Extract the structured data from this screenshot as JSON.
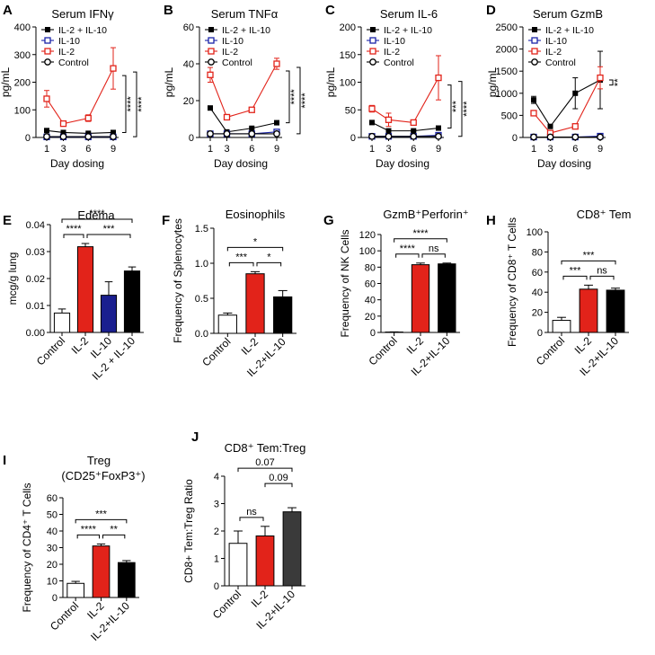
{
  "chart_data": [
    {
      "id": "A",
      "type": "line",
      "panel_label": "A",
      "title": "Serum IFNγ",
      "xlabel": "Day dosing",
      "ylabel": "pg/mL",
      "x": [
        1,
        3,
        6,
        9
      ],
      "xticks": [
        "1",
        "3",
        "6",
        "9"
      ],
      "ylim": [
        0,
        400
      ],
      "yticks": [
        0,
        100,
        200,
        300,
        400
      ],
      "legend": "top-left",
      "series": [
        {
          "name": "IL-2 + IL-10",
          "color": "#000000",
          "marker": "filled-square",
          "values": [
            25,
            18,
            15,
            18
          ],
          "err": [
            3,
            2,
            2,
            3
          ]
        },
        {
          "name": "IL-10",
          "color": "#1a23a8",
          "marker": "open-square",
          "values": [
            2,
            2,
            2,
            2
          ],
          "err": [
            0,
            0,
            0,
            0
          ]
        },
        {
          "name": "IL-2",
          "color": "#e2231a",
          "marker": "open-square",
          "values": [
            140,
            50,
            70,
            250
          ],
          "err": [
            30,
            6,
            12,
            75
          ]
        },
        {
          "name": "Control",
          "color": "#000000",
          "marker": "open-circle",
          "values": [
            3,
            3,
            3,
            3
          ],
          "err": [
            0,
            0,
            0,
            0
          ]
        }
      ],
      "annotations": [
        "****",
        "****"
      ]
    },
    {
      "id": "B",
      "type": "line",
      "panel_label": "B",
      "title": "Serum TNFα",
      "xlabel": "Day dosing",
      "ylabel": "pg/mL",
      "x": [
        1,
        3,
        6,
        9
      ],
      "xticks": [
        "1",
        "3",
        "6",
        "9"
      ],
      "ylim": [
        0,
        60
      ],
      "yticks": [
        0,
        20,
        40,
        60
      ],
      "legend": "top-left",
      "series": [
        {
          "name": "IL-2 + IL-10",
          "color": "#000000",
          "marker": "filled-square",
          "values": [
            16,
            3,
            5,
            8
          ],
          "err": [
            1,
            0.5,
            0.5,
            1
          ]
        },
        {
          "name": "IL-10",
          "color": "#1a23a8",
          "marker": "open-square",
          "values": [
            2,
            2,
            2,
            3
          ],
          "err": [
            0,
            0,
            0,
            0
          ]
        },
        {
          "name": "IL-2",
          "color": "#e2231a",
          "marker": "open-square",
          "values": [
            34,
            11,
            15,
            40
          ],
          "err": [
            4,
            1,
            1,
            3
          ]
        },
        {
          "name": "Control",
          "color": "#000000",
          "marker": "open-circle",
          "values": [
            2,
            2,
            2,
            2
          ],
          "err": [
            0,
            0,
            0,
            0
          ]
        }
      ],
      "annotations": [
        "****",
        "****"
      ]
    },
    {
      "id": "C",
      "type": "line",
      "panel_label": "C",
      "title": "Serum IL-6",
      "xlabel": "Day dosing",
      "ylabel": "pg/mL",
      "x": [
        1,
        3,
        6,
        9
      ],
      "xticks": [
        "1",
        "3",
        "6",
        "9"
      ],
      "ylim": [
        0,
        200
      ],
      "yticks": [
        0,
        50,
        100,
        150,
        200
      ],
      "legend": "top-left",
      "series": [
        {
          "name": "IL-2 + IL-10",
          "color": "#000000",
          "marker": "filled-square",
          "values": [
            27,
            12,
            12,
            17
          ],
          "err": [
            2,
            2,
            2,
            2
          ]
        },
        {
          "name": "IL-10",
          "color": "#1a23a8",
          "marker": "open-square",
          "values": [
            2,
            2,
            2,
            4
          ],
          "err": [
            0,
            0,
            0,
            0
          ]
        },
        {
          "name": "IL-2",
          "color": "#e2231a",
          "marker": "open-square",
          "values": [
            52,
            32,
            27,
            108
          ],
          "err": [
            6,
            12,
            3,
            40
          ]
        },
        {
          "name": "Control",
          "color": "#000000",
          "marker": "open-circle",
          "values": [
            2,
            2,
            2,
            2
          ],
          "err": [
            0,
            0,
            0,
            0
          ]
        }
      ],
      "annotations": [
        "***",
        "****"
      ]
    },
    {
      "id": "D",
      "type": "line",
      "panel_label": "D",
      "title": "Serum GzmB",
      "xlabel": "Day dosing",
      "ylabel": "pg/mL",
      "x": [
        1,
        3,
        6,
        9
      ],
      "xticks": [
        "1",
        "3",
        "6",
        "9"
      ],
      "ylim": [
        0,
        2500
      ],
      "yticks": [
        0,
        500,
        1000,
        1500,
        2000,
        2500
      ],
      "legend": "top-left",
      "series": [
        {
          "name": "IL-2 + IL-10",
          "color": "#000000",
          "marker": "filled-square",
          "values": [
            850,
            250,
            1000,
            1300
          ],
          "err": [
            80,
            30,
            350,
            650
          ]
        },
        {
          "name": "IL-10",
          "color": "#1a23a8",
          "marker": "open-square",
          "values": [
            10,
            10,
            10,
            30
          ],
          "err": [
            0,
            0,
            0,
            0
          ]
        },
        {
          "name": "IL-2",
          "color": "#e2231a",
          "marker": "open-square",
          "values": [
            550,
            100,
            250,
            1350
          ],
          "err": [
            40,
            20,
            30,
            250
          ]
        },
        {
          "name": "Control",
          "color": "#000000",
          "marker": "open-circle",
          "values": [
            10,
            10,
            10,
            10
          ],
          "err": [
            0,
            0,
            0,
            0
          ]
        }
      ],
      "annotations": [
        "**"
      ]
    },
    {
      "id": "E",
      "type": "bar",
      "panel_label": "E",
      "title": "Edema",
      "ylabel": "mcg/g lung",
      "ylim": [
        0,
        0.04
      ],
      "yticks": [
        0,
        0.01,
        0.02,
        0.03,
        0.04
      ],
      "ytick_labels": [
        "0.00",
        "0.01",
        "0.02",
        "0.03",
        "0.04"
      ],
      "categories": [
        "Control",
        "IL-2",
        "IL-10",
        "IL-2 + IL-10"
      ],
      "values": [
        0.0072,
        0.0318,
        0.0138,
        0.0228
      ],
      "errors": [
        0.0015,
        0.0012,
        0.005,
        0.0015
      ],
      "colors": [
        "#ffffff",
        "#e2231a",
        "#1a1f8f",
        "#000000"
      ],
      "comparisons": [
        {
          "from": 0,
          "to": 1,
          "label": "****",
          "level": 0
        },
        {
          "from": 1,
          "to": 3,
          "label": "***",
          "level": 0
        },
        {
          "from": 0,
          "to": 3,
          "label": "****",
          "level": 1
        }
      ]
    },
    {
      "id": "F",
      "type": "bar",
      "panel_label": "F",
      "title": "Eosinophils",
      "ylabel": "Frequency of Splenocytes",
      "ylim": [
        0,
        1.5
      ],
      "yticks": [
        0,
        0.5,
        1.0,
        1.5
      ],
      "ytick_labels": [
        "0.0",
        "0.5",
        "1.0",
        "1.5"
      ],
      "categories": [
        "Control",
        "IL-2",
        "IL-2+IL-10"
      ],
      "values": [
        0.26,
        0.85,
        0.52
      ],
      "errors": [
        0.03,
        0.03,
        0.09
      ],
      "colors": [
        "#ffffff",
        "#e2231a",
        "#000000"
      ],
      "comparisons": [
        {
          "from": 0,
          "to": 1,
          "label": "***",
          "level": 0
        },
        {
          "from": 1,
          "to": 2,
          "label": "*",
          "level": 0
        },
        {
          "from": 0,
          "to": 2,
          "label": "*",
          "level": 1
        }
      ]
    },
    {
      "id": "G",
      "type": "bar",
      "panel_label": "G",
      "title": "GzmB⁺Perforin⁺",
      "ylabel": "Frequency of NK Cells",
      "ylim": [
        0,
        120
      ],
      "yticks": [
        0,
        20,
        40,
        60,
        80,
        100,
        120
      ],
      "ytick_labels": [
        "0",
        "20",
        "40",
        "60",
        "80",
        "100",
        "120"
      ],
      "categories": [
        "Control",
        "IL-2",
        "IL-2+IL-10"
      ],
      "values": [
        0.5,
        83,
        84
      ],
      "errors": [
        0.2,
        2,
        1
      ],
      "colors": [
        "#ffffff",
        "#e2231a",
        "#000000"
      ],
      "comparisons": [
        {
          "from": 0,
          "to": 1,
          "label": "****",
          "level": 0
        },
        {
          "from": 1,
          "to": 2,
          "label": "ns",
          "level": 0
        },
        {
          "from": 0,
          "to": 2,
          "label": "****",
          "level": 1
        }
      ]
    },
    {
      "id": "H",
      "type": "bar",
      "panel_label": "H",
      "title": "CD8⁺ Tem",
      "ylabel": "Frequency of CD8⁺ T Cells",
      "ylim": [
        0,
        100
      ],
      "yticks": [
        0,
        20,
        40,
        60,
        80,
        100
      ],
      "ytick_labels": [
        "0",
        "20",
        "40",
        "60",
        "80",
        "100"
      ],
      "categories": [
        "Control",
        "IL-2",
        "IL-2+IL-10"
      ],
      "values": [
        12,
        43,
        42
      ],
      "errors": [
        3,
        4,
        2
      ],
      "colors": [
        "#ffffff",
        "#e2231a",
        "#000000"
      ],
      "comparisons": [
        {
          "from": 0,
          "to": 1,
          "label": "***",
          "level": 0
        },
        {
          "from": 1,
          "to": 2,
          "label": "ns",
          "level": 0
        },
        {
          "from": 0,
          "to": 2,
          "label": "***",
          "level": 1
        }
      ]
    },
    {
      "id": "I",
      "type": "bar",
      "panel_label": "I",
      "title": "Treg",
      "subtitle": "(CD25⁺FoxP3⁺)",
      "ylabel": "Frequency of CD4⁺ T Cells",
      "ylim": [
        0,
        60
      ],
      "yticks": [
        0,
        10,
        20,
        30,
        40,
        50,
        60
      ],
      "ytick_labels": [
        "0",
        "10",
        "20",
        "30",
        "40",
        "50",
        "60"
      ],
      "categories": [
        "Control",
        "IL-2",
        "IL-2+IL-10"
      ],
      "values": [
        8.5,
        31,
        21
      ],
      "errors": [
        1.2,
        1.2,
        1.2
      ],
      "colors": [
        "#ffffff",
        "#e2231a",
        "#000000"
      ],
      "comparisons": [
        {
          "from": 0,
          "to": 1,
          "label": "****",
          "level": 0
        },
        {
          "from": 1,
          "to": 2,
          "label": "**",
          "level": 0
        },
        {
          "from": 0,
          "to": 2,
          "label": "***",
          "level": 1
        }
      ]
    },
    {
      "id": "J",
      "type": "bar",
      "panel_label": "J",
      "title": "CD8⁺ Tem:Treg",
      "ylabel": "CD8+ Tem:Treg Ratio",
      "ylim": [
        0,
        4
      ],
      "yticks": [
        0,
        1,
        2,
        3,
        4
      ],
      "ytick_labels": [
        "0",
        "1",
        "2",
        "3",
        "4"
      ],
      "categories": [
        "Control",
        "IL-2",
        "IL-2+IL-10"
      ],
      "values": [
        1.55,
        1.82,
        2.7
      ],
      "errors": [
        0.45,
        0.35,
        0.15
      ],
      "colors": [
        "#ffffff",
        "#e2231a",
        "#3a3a3a"
      ],
      "comparisons": [
        {
          "from": 0,
          "to": 1,
          "label": "ns",
          "level": 0
        },
        {
          "from": 1,
          "to": 2,
          "label": "0.09",
          "level": 1
        },
        {
          "from": 0,
          "to": 2,
          "label": "0.07",
          "level": 2
        }
      ]
    }
  ]
}
